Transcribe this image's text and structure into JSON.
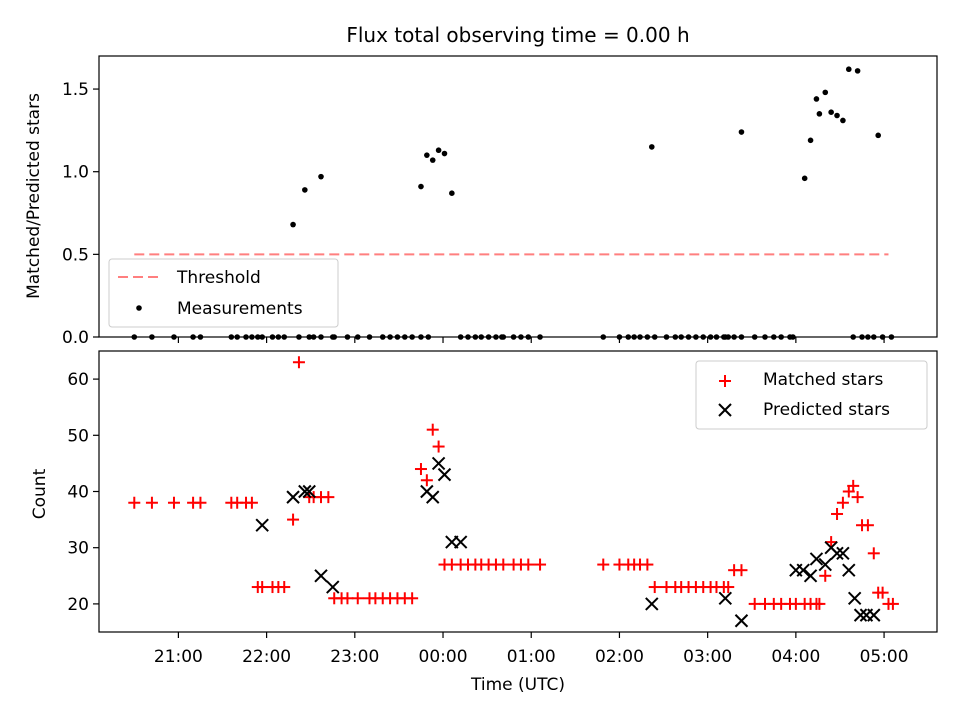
{
  "chart_data": [
    {
      "type": "scatter",
      "title": "Flux total observing time = 0.00 h",
      "xlabel": "",
      "ylabel": "Matched/Predicted stars",
      "ylim": [
        0,
        1.7
      ],
      "yticks": [
        0.0,
        0.5,
        1.0,
        1.5
      ],
      "ytick_labels": [
        "0.0",
        "0.5",
        "1.0",
        "1.5"
      ],
      "legend_position": "lower-left",
      "threshold": {
        "name": "Threshold",
        "value": 0.5,
        "x_start": "20:30",
        "x_end": "05:03",
        "color": "#ff7f7f"
      },
      "series": [
        {
          "name": "Measurements",
          "color": "#000000",
          "x": [
            "20:30",
            "20:42",
            "20:57",
            "21:10",
            "21:15",
            "21:36",
            "21:40",
            "21:46",
            "21:50",
            "21:54",
            "21:57",
            "22:04",
            "22:08",
            "22:12",
            "22:22",
            "22:32",
            "22:37",
            "22:45",
            "22:55",
            "23:02",
            "23:19",
            "23:24",
            "23:29",
            "23:34",
            "23:39",
            "23:45",
            "23:50",
            "23:10",
            "22:29",
            "22:46",
            "22:18",
            "22:26",
            "22:37",
            "23:45",
            "23:49",
            "23:53",
            "23:57",
            "24:01",
            "24:06",
            "24:12",
            "24:17",
            "24:22",
            "24:26",
            "24:31",
            "24:36",
            "24:41",
            "24:48",
            "24:53",
            "24:58",
            "24:40",
            "25:06",
            "25:49",
            "26:00",
            "26:06",
            "26:10",
            "26:14",
            "26:19",
            "26:24",
            "26:32",
            "26:38",
            "26:42",
            "26:47",
            "26:52",
            "26:57",
            "27:02",
            "27:06",
            "27:11",
            "27:14",
            "27:18",
            "27:23",
            "27:32",
            "27:39",
            "27:45",
            "27:50",
            "27:56",
            "27:58",
            "28:06",
            "28:10",
            "28:14",
            "28:16",
            "28:20",
            "28:24",
            "28:28",
            "28:32",
            "28:36",
            "28:42",
            "28:45",
            "28:49",
            "28:53",
            "29:05",
            "27:23",
            "27:12",
            "26:22",
            "28:56",
            "28:59",
            "28:39"
          ],
          "y": [
            0,
            0,
            0,
            0,
            0,
            0,
            0,
            0,
            0,
            0,
            0,
            0,
            0,
            0,
            0,
            0,
            0,
            0,
            0,
            0,
            0,
            0,
            0,
            0,
            0,
            0,
            0,
            0,
            0,
            0,
            0.68,
            0.89,
            0.97,
            0.91,
            1.1,
            1.07,
            1.13,
            1.11,
            0.87,
            0,
            0,
            0,
            0,
            0,
            0,
            0,
            0,
            0,
            0,
            0,
            0,
            0,
            0,
            0,
            0,
            0,
            0,
            0,
            0,
            0,
            0,
            0,
            0,
            0,
            0,
            0,
            0,
            0,
            0,
            0,
            0,
            0,
            0,
            0,
            0,
            0,
            0.96,
            1.19,
            1.44,
            1.35,
            1.48,
            1.36,
            1.34,
            1.31,
            1.62,
            1.61,
            0,
            0,
            0,
            0,
            1.24,
            0,
            1.15,
            1.22,
            0,
            0
          ]
        }
      ]
    },
    {
      "type": "scatter",
      "title": "",
      "xlabel": "Time (UTC)",
      "ylabel": "Count",
      "ylim": [
        15,
        65
      ],
      "yticks": [
        20,
        30,
        40,
        50,
        60
      ],
      "ytick_labels": [
        "20",
        "30",
        "40",
        "50",
        "60"
      ],
      "xticks": [
        "21:00",
        "22:00",
        "23:00",
        "00:00",
        "01:00",
        "02:00",
        "03:00",
        "04:00",
        "05:00"
      ],
      "legend_position": "upper-right",
      "series": [
        {
          "name": "Matched stars",
          "marker": "plus",
          "color": "#ff0000",
          "x": [
            "20:30",
            "20:42",
            "20:57",
            "21:10",
            "21:15",
            "21:36",
            "21:40",
            "21:46",
            "21:50",
            "21:54",
            "21:57",
            "22:04",
            "22:08",
            "22:12",
            "22:18",
            "22:22",
            "22:29",
            "22:32",
            "22:37",
            "22:42",
            "22:46",
            "22:51",
            "22:55",
            "23:02",
            "23:10",
            "23:14",
            "23:19",
            "23:24",
            "23:29",
            "23:34",
            "23:39",
            "23:45",
            "23:49",
            "23:53",
            "23:57",
            "24:01",
            "24:06",
            "24:12",
            "24:17",
            "24:22",
            "24:26",
            "24:31",
            "24:36",
            "24:41",
            "24:48",
            "24:53",
            "24:58",
            "25:06",
            "25:49",
            "26:00",
            "26:06",
            "26:10",
            "26:14",
            "26:19",
            "26:24",
            "26:32",
            "26:38",
            "26:42",
            "26:47",
            "26:52",
            "26:57",
            "27:02",
            "27:06",
            "27:11",
            "27:14",
            "27:18",
            "27:23",
            "27:32",
            "27:39",
            "27:45",
            "27:50",
            "27:56",
            "28:00",
            "28:06",
            "28:10",
            "28:14",
            "28:16",
            "28:20",
            "28:24",
            "28:28",
            "28:32",
            "28:36",
            "28:39",
            "28:42",
            "28:45",
            "28:49",
            "28:53",
            "28:56",
            "28:59",
            "29:03",
            "29:06"
          ],
          "y": [
            38,
            38,
            38,
            38,
            38,
            38,
            38,
            38,
            38,
            23,
            23,
            23,
            23,
            23,
            35,
            63,
            39,
            39,
            39,
            39,
            21,
            21,
            21,
            21,
            21,
            21,
            21,
            21,
            21,
            21,
            21,
            44,
            42,
            51,
            48,
            27,
            27,
            27,
            27,
            27,
            27,
            27,
            27,
            27,
            27,
            27,
            27,
            27,
            27,
            27,
            27,
            27,
            27,
            27,
            23,
            23,
            23,
            23,
            23,
            23,
            23,
            23,
            23,
            23,
            23,
            26,
            26,
            20,
            20,
            20,
            20,
            20,
            20,
            20,
            20,
            20,
            20,
            25,
            31,
            36,
            38,
            40,
            41,
            39,
            34,
            34,
            29,
            22,
            22,
            20,
            20
          ]
        },
        {
          "name": "Predicted stars",
          "marker": "x",
          "color": "#000000",
          "x": [
            "21:57",
            "22:18",
            "22:26",
            "22:29",
            "22:37",
            "22:45",
            "23:49",
            "23:53",
            "23:57",
            "24:01",
            "24:06",
            "24:12",
            "26:22",
            "27:12",
            "27:23",
            "28:00",
            "28:05",
            "28:10",
            "28:14",
            "28:20",
            "28:24",
            "28:28",
            "28:32",
            "28:36",
            "28:40",
            "28:44",
            "28:48",
            "28:53"
          ],
          "y": [
            34,
            39,
            40,
            40,
            25,
            23,
            40,
            39,
            45,
            43,
            31,
            31,
            20,
            21,
            17,
            26,
            26,
            25,
            28,
            27,
            30,
            29,
            29,
            26,
            21,
            18,
            18,
            18
          ]
        }
      ]
    }
  ]
}
